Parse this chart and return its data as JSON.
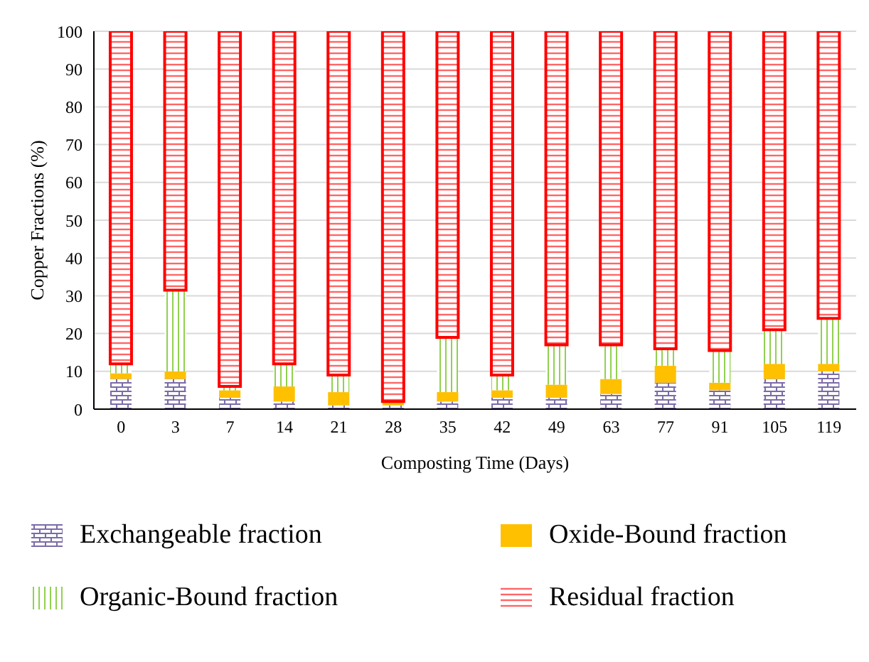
{
  "chart_data": {
    "type": "bar",
    "stacked": true,
    "xlabel": "Composting Time (Days)",
    "ylabel": "Copper Fractions (%)",
    "categories": [
      "0",
      "3",
      "7",
      "14",
      "21",
      "28",
      "35",
      "42",
      "49",
      "63",
      "77",
      "91",
      "105",
      "119"
    ],
    "series": [
      {
        "name": "Exchangeable fraction",
        "color": "#7b6ba8",
        "values": [
          8,
          8,
          3,
          2,
          1,
          1,
          2,
          3,
          3,
          4,
          7,
          5,
          8,
          10
        ]
      },
      {
        "name": "Oxide-Bound fraction",
        "color": "#ffc000",
        "values": [
          1.5,
          2,
          2,
          4,
          3.5,
          1,
          2.5,
          2,
          3.5,
          4,
          4.5,
          2,
          4,
          2
        ]
      },
      {
        "name": "Organic-Bound fraction",
        "color": "#92d050",
        "values": [
          2.5,
          21.5,
          1,
          6,
          4.5,
          0,
          14.5,
          4,
          10.5,
          9,
          4.5,
          8.5,
          9,
          12
        ]
      },
      {
        "name": "Residual fraction",
        "color": "#ff0000",
        "values": [
          88,
          68.5,
          94,
          88,
          91,
          98,
          81,
          91,
          83,
          83,
          84,
          84.5,
          79,
          76
        ]
      }
    ],
    "ylim": [
      0,
      100
    ],
    "yticks": [
      0,
      10,
      20,
      30,
      40,
      50,
      60,
      70,
      80,
      90,
      100
    ],
    "grid": "y",
    "legend": "bottom"
  }
}
